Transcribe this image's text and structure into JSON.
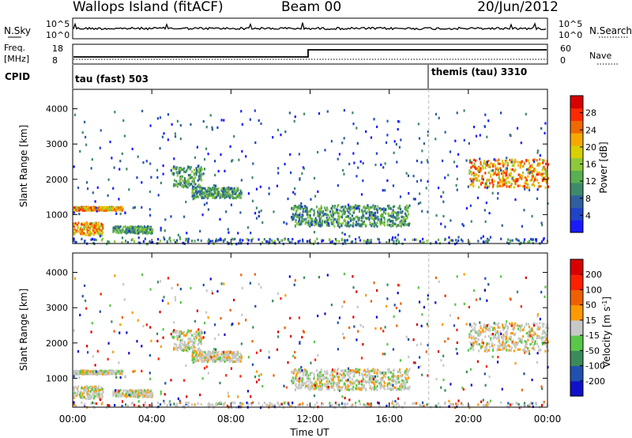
{
  "header": {
    "title": "Wallops Island (fitACF)",
    "beam": "Beam 00",
    "date": "20/Jun/2012"
  },
  "panels": {
    "nsky": {
      "label": "N.Sky",
      "tick_high": "10^5",
      "tick_low": "10^0",
      "right_label": "N.Search",
      "right_tick_high": "10^5",
      "right_tick_low": "10^0"
    },
    "freq": {
      "label_line1": "Freq.",
      "label_line2": "[MHz]",
      "tick_high": "18",
      "tick_low": "8",
      "right_label": "Nave",
      "right_tick_high": "60",
      "right_tick_low": "0"
    },
    "cpid": {
      "label": "CPID",
      "segments": [
        {
          "text": "tau (fast) 503",
          "start_hour": 0
        },
        {
          "text": "themis (tau) 3310",
          "start_hour": 18.0
        }
      ]
    }
  },
  "chart_data": [
    {
      "type": "heatmap",
      "name": "Power",
      "ylabel": "Slant Range [km]",
      "yticks": [
        1000,
        2000,
        3000,
        4000
      ],
      "ylim": [
        180,
        4550
      ],
      "xlim": [
        0,
        24
      ],
      "colorbar": {
        "label": "Power [dB]",
        "ticks": [
          "28",
          "24",
          "20",
          "16",
          "12",
          "8",
          "4"
        ],
        "colors": [
          "#1a1aff",
          "#1f44c8",
          "#2f5f9e",
          "#3d8a6a",
          "#58b050",
          "#8ec83a",
          "#d8d000",
          "#f7a800",
          "#f06800",
          "#ff2a00",
          "#d80000"
        ]
      },
      "features": [
        {
          "x": [
            0,
            2.5
          ],
          "y": [
            1150,
            1250
          ],
          "level": "high"
        },
        {
          "x": [
            0,
            1.5
          ],
          "y": [
            450,
            800
          ],
          "level": "high"
        },
        {
          "x": [
            2,
            4
          ],
          "y": [
            500,
            700
          ],
          "level": "medium"
        },
        {
          "x": [
            5,
            6.5
          ],
          "y": [
            1800,
            2400
          ],
          "level": "medium"
        },
        {
          "x": [
            6,
            8.5
          ],
          "y": [
            1500,
            1800
          ],
          "level": "medium"
        },
        {
          "x": [
            11,
            17
          ],
          "y": [
            700,
            1300
          ],
          "level": "medium"
        },
        {
          "x": [
            20,
            24
          ],
          "y": [
            1800,
            2600
          ],
          "level": "high"
        }
      ]
    },
    {
      "type": "heatmap",
      "name": "Velocity",
      "ylabel": "Slant Range [km]",
      "yticks": [
        1000,
        2000,
        3000,
        4000
      ],
      "ylim": [
        180,
        4550
      ],
      "xlim": [
        0,
        24
      ],
      "colorbar": {
        "label": "Velocity [m s^-1]",
        "ticks": [
          "200",
          "100",
          "50",
          "15",
          "-15",
          "-50",
          "-100",
          "-200"
        ],
        "colors": [
          "#1010c8",
          "#2050b0",
          "#3a8a5a",
          "#58c848",
          "#c8c8c8",
          "#ff9a00",
          "#f06000",
          "#ff2000",
          "#d80000"
        ]
      }
    }
  ],
  "xaxis": {
    "label": "Time UT",
    "ticks": [
      "00:00",
      "04:00",
      "08:00",
      "12:00",
      "16:00",
      "20:00",
      "00:00"
    ]
  }
}
